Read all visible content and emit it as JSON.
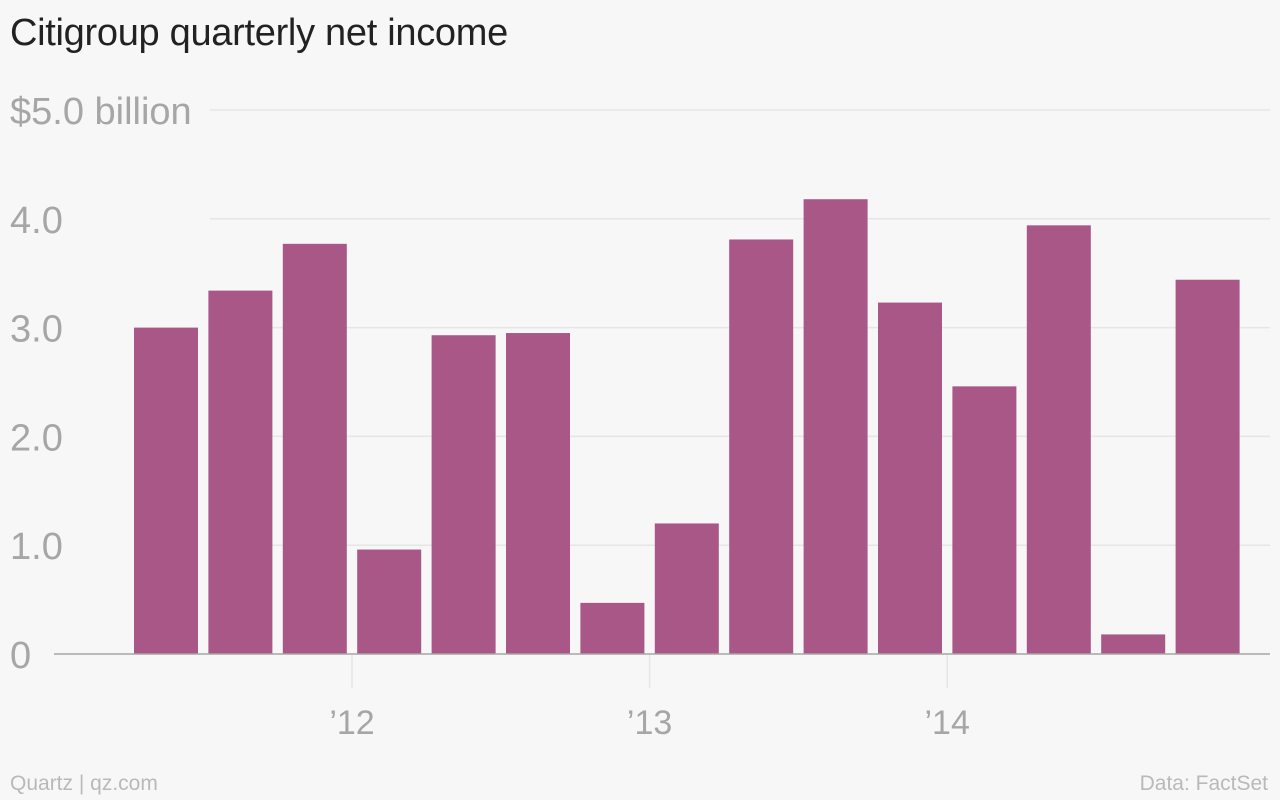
{
  "title": "Citigroup quarterly net income",
  "source_left": "Quartz | qz.com",
  "source_right": "Data: FactSet",
  "colors": {
    "bar": "#a95787",
    "grid": "#e6e6e6",
    "axis": "#a6a6a6",
    "tick_text": "#a6a6a6",
    "background": "#f8f7f8"
  },
  "chart_data": {
    "type": "bar",
    "title": "Citigroup quarterly net income",
    "unit": "billion",
    "categories": [
      "Q2 2011",
      "Q3 2011",
      "Q4 2011",
      "Q1 2012",
      "Q2 2012",
      "Q3 2012",
      "Q4 2012",
      "Q1 2013",
      "Q2 2013",
      "Q3 2013",
      "Q4 2013",
      "Q1 2014",
      "Q2 2014",
      "Q3 2014",
      "Q4 2014"
    ],
    "values": [
      3.0,
      3.34,
      3.77,
      0.96,
      2.93,
      2.95,
      0.47,
      1.2,
      3.81,
      4.18,
      3.23,
      2.46,
      3.94,
      0.18,
      3.44
    ],
    "ylim": [
      0,
      5
    ],
    "yticks": [
      {
        "value": 0,
        "label": "0"
      },
      {
        "value": 1,
        "label": "1.0"
      },
      {
        "value": 2,
        "label": "2.0"
      },
      {
        "value": 3,
        "label": "3.0"
      },
      {
        "value": 4,
        "label": "4.0"
      },
      {
        "value": 5,
        "label": "$5.0 billion"
      }
    ],
    "xticks": [
      {
        "after_category": "Q4 2011",
        "label": "’12"
      },
      {
        "after_category": "Q4 2012",
        "label": "’13"
      },
      {
        "after_category": "Q4 2013",
        "label": "’14"
      }
    ],
    "grid": true,
    "xlabel": "",
    "ylabel": ""
  }
}
